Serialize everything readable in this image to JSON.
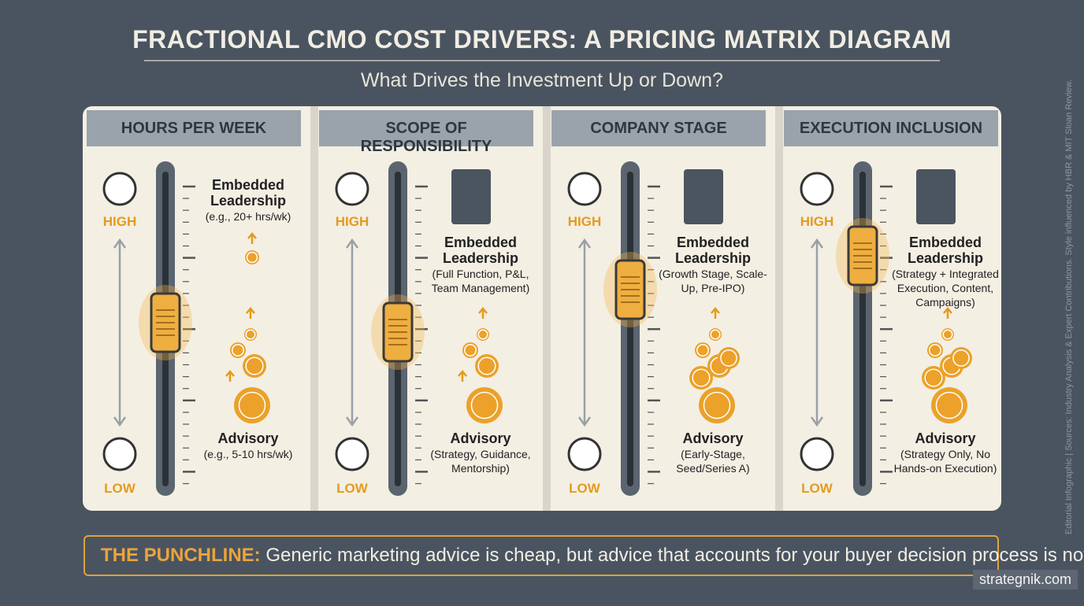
{
  "header": {
    "title": "FRACTIONAL CMO COST DRIVERS: A PRICING MATRIX DIAGRAM",
    "subtitle": "What Drives the Investment Up or Down?"
  },
  "panels": [
    {
      "header": "HOURS PER WEEK",
      "high_label": "HIGH",
      "low_label": "LOW",
      "top": {
        "title": "Embedded Leadership",
        "description": "(e.g., 20+ hrs/wk)"
      },
      "bottom": {
        "title": "Advisory",
        "description": "(e.g., 5-10 hrs/wk)"
      }
    },
    {
      "header": "SCOPE OF RESPONSIBILITY",
      "high_label": "HIGH",
      "low_label": "LOW",
      "top": {
        "title": "Embedded Leadership",
        "description": "(Full Function, P&L, Team Management)"
      },
      "bottom": {
        "title": "Advisory",
        "description": "(Strategy, Guidance, Mentorship)"
      }
    },
    {
      "header": "COMPANY STAGE",
      "high_label": "HIGH",
      "low_label": "LOW",
      "top": {
        "title": "Embedded Leadership",
        "description": "(Growth Stage, Scale-Up, Pre-IPO)"
      },
      "bottom": {
        "title": "Advisory",
        "description": "(Early-Stage, Seed/Series A)"
      }
    },
    {
      "header": "EXECUTION INCLUSION",
      "high_label": "HIGH",
      "low_label": "LOW",
      "top": {
        "title": "Embedded Leadership",
        "description": "(Strategy + Integrated Execution, Content, Campaigns)"
      },
      "bottom": {
        "title": "Advisory",
        "description": "(Strategy Only, No Hands-on Execution)"
      }
    }
  ],
  "punchline": {
    "lead": "THE PUNCHLINE:",
    "text": "Generic marketing advice is cheap, but advice that accounts for your buyer decision process is not."
  },
  "watermark": "strategnik.com",
  "side_note": "Editorial Infographic | Sources: Industry Analysis & Expert Contributions. Style influenced by HBR & MIT Sloan Review."
}
